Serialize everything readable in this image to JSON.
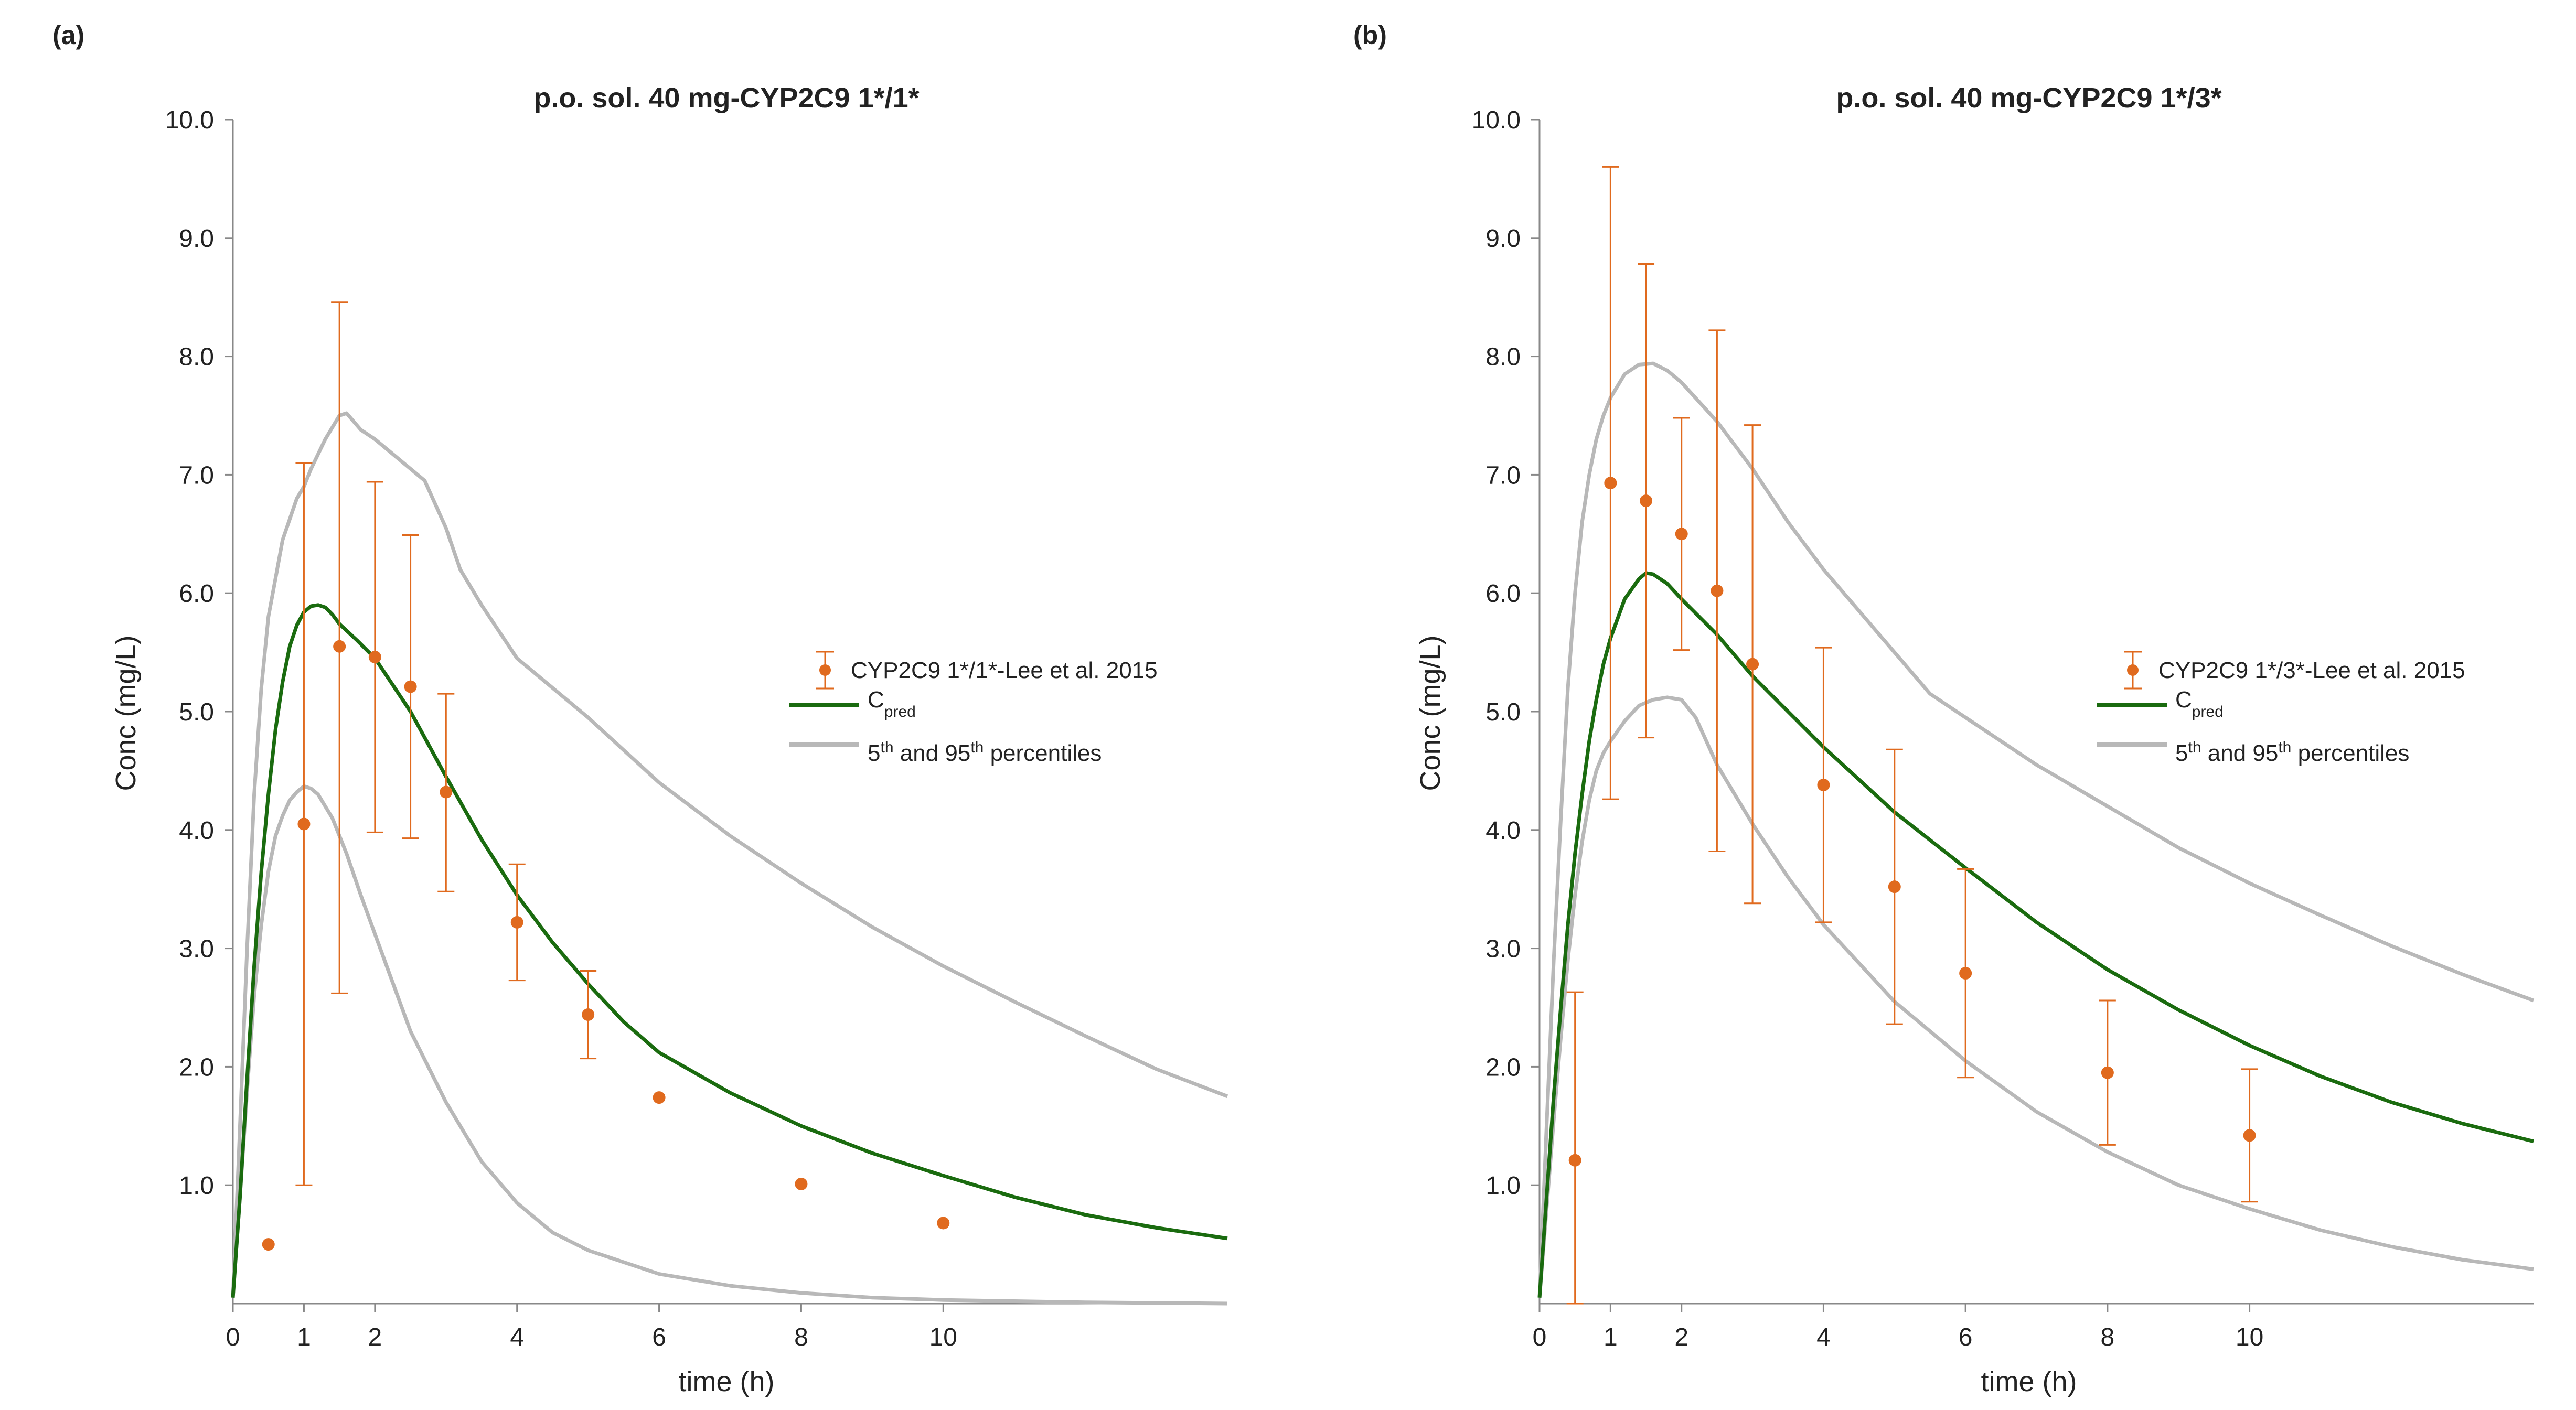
{
  "chart_data": [
    {
      "type": "line",
      "panel_label": "(a)",
      "title": "p.o. sol. 40 mg-CYP2C9 1*/1*",
      "xlabel": "time (h)",
      "ylabel": "Conc (mg/L)",
      "xlim": [
        0,
        14
      ],
      "ylim": [
        0,
        10
      ],
      "xticks": [
        0,
        1,
        2,
        4,
        6,
        8,
        10
      ],
      "xtick_labels": [
        "0",
        "1",
        "2",
        "4",
        "6",
        "8",
        "10"
      ],
      "yticks": [
        1,
        2,
        3,
        4,
        5,
        6,
        7,
        8,
        9,
        10
      ],
      "ytick_labels": [
        "1.0",
        "2.0",
        "3.0",
        "4.0",
        "5.0",
        "6.0",
        "7.0",
        "8.0",
        "9.0",
        "10.0"
      ],
      "grid": false,
      "legend_position": "right",
      "legend": {
        "observed": "CYP2C9 1*/1*-Lee et al. 2015",
        "pred_main": "C",
        "pred_sub": "pred",
        "pct_a": "5",
        "pct_sup1": "th",
        "pct_b": " and 95",
        "pct_sup2": "th",
        "pct_c": " percentiles"
      },
      "colors": {
        "observed": "#e06a1e",
        "pred": "#1a6b0f",
        "percentile": "#b8b8b8"
      },
      "observed": [
        {
          "x": 0.5,
          "y": 0.5
        },
        {
          "x": 1.0,
          "y": 4.05,
          "lo": 1.0,
          "hi": 7.1
        },
        {
          "x": 1.5,
          "y": 5.55,
          "lo": 2.62,
          "hi": 8.46
        },
        {
          "x": 2.0,
          "y": 5.46,
          "lo": 3.98,
          "hi": 6.94
        },
        {
          "x": 2.5,
          "y": 5.21,
          "lo": 3.93,
          "hi": 6.49
        },
        {
          "x": 3.0,
          "y": 4.32,
          "lo": 3.48,
          "hi": 5.15
        },
        {
          "x": 4.0,
          "y": 3.22,
          "lo": 2.73,
          "hi": 3.71
        },
        {
          "x": 5.0,
          "y": 2.44,
          "lo": 2.07,
          "hi": 2.81
        },
        {
          "x": 6.0,
          "y": 1.74
        },
        {
          "x": 8.0,
          "y": 1.01
        },
        {
          "x": 10.0,
          "y": 0.68
        }
      ],
      "series": [
        {
          "name": "C_pred",
          "role": "pred",
          "x": [
            0,
            0.1,
            0.2,
            0.3,
            0.4,
            0.5,
            0.6,
            0.7,
            0.8,
            0.9,
            1.0,
            1.1,
            1.2,
            1.3,
            1.4,
            1.5,
            1.75,
            2.0,
            2.5,
            3.0,
            3.5,
            4.0,
            4.5,
            5.0,
            5.5,
            6.0,
            7.0,
            8.0,
            9.0,
            10.0,
            11.0,
            12.0,
            13.0,
            14.0
          ],
          "y": [
            0.05,
            0.9,
            1.9,
            2.85,
            3.65,
            4.3,
            4.85,
            5.25,
            5.55,
            5.73,
            5.84,
            5.89,
            5.9,
            5.88,
            5.82,
            5.74,
            5.6,
            5.45,
            5.0,
            4.45,
            3.92,
            3.45,
            3.05,
            2.7,
            2.38,
            2.12,
            1.78,
            1.5,
            1.27,
            1.08,
            0.9,
            0.75,
            0.64,
            0.55
          ]
        },
        {
          "name": "95th percentile",
          "role": "percentile",
          "x": [
            0,
            0.1,
            0.2,
            0.3,
            0.4,
            0.5,
            0.7,
            0.9,
            1.0,
            1.1,
            1.3,
            1.5,
            1.6,
            1.8,
            2.0,
            2.3,
            2.5,
            2.7,
            3.0,
            3.2,
            3.5,
            4.0,
            5.0,
            6.0,
            7.0,
            8.0,
            9.0,
            10.0,
            11.0,
            12.0,
            13.0,
            14.0
          ],
          "y": [
            0.05,
            1.5,
            3.0,
            4.3,
            5.2,
            5.8,
            6.45,
            6.8,
            6.9,
            7.05,
            7.3,
            7.5,
            7.52,
            7.38,
            7.3,
            7.15,
            7.05,
            6.95,
            6.55,
            6.2,
            5.9,
            5.45,
            4.95,
            4.4,
            3.95,
            3.55,
            3.18,
            2.85,
            2.55,
            2.26,
            1.98,
            1.75
          ]
        },
        {
          "name": "5th percentile",
          "role": "percentile",
          "x": [
            0,
            0.1,
            0.2,
            0.3,
            0.4,
            0.5,
            0.6,
            0.7,
            0.8,
            0.9,
            1.0,
            1.1,
            1.2,
            1.4,
            1.6,
            1.8,
            2.0,
            2.5,
            3.0,
            3.5,
            4.0,
            4.5,
            5.0,
            6.0,
            7.0,
            8.0,
            9.0,
            10.0,
            11.0,
            12.0,
            14.0
          ],
          "y": [
            0.05,
            0.9,
            1.8,
            2.6,
            3.2,
            3.65,
            3.95,
            4.12,
            4.25,
            4.32,
            4.37,
            4.35,
            4.3,
            4.1,
            3.8,
            3.45,
            3.12,
            2.3,
            1.7,
            1.2,
            0.85,
            0.6,
            0.45,
            0.25,
            0.15,
            0.09,
            0.05,
            0.03,
            0.02,
            0.01,
            0.0
          ]
        }
      ]
    },
    {
      "type": "line",
      "panel_label": "(b)",
      "title": "p.o. sol. 40 mg-CYP2C9 1*/3*",
      "xlabel": "time (h)",
      "ylabel": "Conc (mg/L)",
      "xlim": [
        0,
        14
      ],
      "ylim": [
        0,
        10
      ],
      "xticks": [
        0,
        1,
        2,
        4,
        6,
        8,
        10
      ],
      "xtick_labels": [
        "0",
        "1",
        "2",
        "4",
        "6",
        "8",
        "10"
      ],
      "yticks": [
        1,
        2,
        3,
        4,
        5,
        6,
        7,
        8,
        9,
        10
      ],
      "ytick_labels": [
        "1.0",
        "2.0",
        "3.0",
        "4.0",
        "5.0",
        "6.0",
        "7.0",
        "8.0",
        "9.0",
        "10.0"
      ],
      "grid": false,
      "legend_position": "right",
      "legend": {
        "observed": "CYP2C9 1*/3*-Lee et al. 2015",
        "pred_main": "C",
        "pred_sub": "pred",
        "pct_a": "5",
        "pct_sup1": "th",
        "pct_b": " and 95",
        "pct_sup2": "th",
        "pct_c": " percentiles"
      },
      "colors": {
        "observed": "#e06a1e",
        "pred": "#1a6b0f",
        "percentile": "#b8b8b8"
      },
      "observed": [
        {
          "x": 0.5,
          "y": 1.21,
          "lo": 0.0,
          "hi": 2.63
        },
        {
          "x": 1.0,
          "y": 6.93,
          "lo": 4.26,
          "hi": 9.6
        },
        {
          "x": 1.5,
          "y": 6.78,
          "lo": 4.78,
          "hi": 8.78
        },
        {
          "x": 2.0,
          "y": 6.5,
          "lo": 5.52,
          "hi": 7.48
        },
        {
          "x": 2.5,
          "y": 6.02,
          "lo": 3.82,
          "hi": 8.22
        },
        {
          "x": 3.0,
          "y": 5.4,
          "lo": 3.38,
          "hi": 7.42
        },
        {
          "x": 4.0,
          "y": 4.38,
          "lo": 3.22,
          "hi": 5.54
        },
        {
          "x": 5.0,
          "y": 3.52,
          "lo": 2.36,
          "hi": 4.68
        },
        {
          "x": 6.0,
          "y": 2.79,
          "lo": 1.91,
          "hi": 3.67
        },
        {
          "x": 8.0,
          "y": 1.95,
          "lo": 1.34,
          "hi": 2.56
        },
        {
          "x": 10.0,
          "y": 1.42,
          "lo": 0.86,
          "hi": 1.98
        }
      ],
      "series": [
        {
          "name": "C_pred",
          "role": "pred",
          "x": [
            0,
            0.1,
            0.2,
            0.3,
            0.4,
            0.5,
            0.6,
            0.7,
            0.8,
            0.9,
            1.0,
            1.2,
            1.4,
            1.5,
            1.6,
            1.8,
            2.0,
            2.5,
            3.0,
            3.5,
            4.0,
            5.0,
            6.0,
            7.0,
            8.0,
            9.0,
            10.0,
            11.0,
            12.0,
            13.0,
            14.0
          ],
          "y": [
            0.05,
            0.9,
            1.75,
            2.5,
            3.2,
            3.8,
            4.3,
            4.75,
            5.1,
            5.4,
            5.62,
            5.95,
            6.12,
            6.17,
            6.16,
            6.08,
            5.95,
            5.65,
            5.3,
            5.0,
            4.7,
            4.15,
            3.68,
            3.22,
            2.82,
            2.48,
            2.18,
            1.92,
            1.7,
            1.52,
            1.37
          ]
        },
        {
          "name": "95th percentile",
          "role": "percentile",
          "x": [
            0,
            0.1,
            0.2,
            0.3,
            0.4,
            0.5,
            0.6,
            0.7,
            0.8,
            0.9,
            1.0,
            1.2,
            1.4,
            1.6,
            1.8,
            2.0,
            2.5,
            3.0,
            3.5,
            4.0,
            5.0,
            5.5,
            6.0,
            7.0,
            8.0,
            9.0,
            10.0,
            11.0,
            12.0,
            13.0,
            14.0
          ],
          "y": [
            0.05,
            1.5,
            2.9,
            4.1,
            5.2,
            6.0,
            6.6,
            7.0,
            7.3,
            7.5,
            7.65,
            7.85,
            7.93,
            7.94,
            7.88,
            7.78,
            7.45,
            7.05,
            6.6,
            6.2,
            5.5,
            5.15,
            4.95,
            4.55,
            4.2,
            3.85,
            3.55,
            3.28,
            3.02,
            2.78,
            2.56
          ]
        },
        {
          "name": "5th percentile",
          "role": "percentile",
          "x": [
            0,
            0.1,
            0.2,
            0.3,
            0.4,
            0.5,
            0.6,
            0.7,
            0.8,
            0.9,
            1.0,
            1.2,
            1.4,
            1.6,
            1.8,
            2.0,
            2.2,
            2.5,
            3.0,
            3.5,
            4.0,
            5.0,
            6.0,
            7.0,
            8.0,
            9.0,
            10.0,
            11.0,
            12.0,
            13.0,
            14.0
          ],
          "y": [
            0.05,
            0.8,
            1.55,
            2.25,
            2.9,
            3.45,
            3.9,
            4.25,
            4.5,
            4.65,
            4.75,
            4.92,
            5.05,
            5.1,
            5.12,
            5.1,
            4.95,
            4.55,
            4.05,
            3.6,
            3.2,
            2.55,
            2.05,
            1.62,
            1.28,
            1.0,
            0.8,
            0.62,
            0.48,
            0.37,
            0.29
          ]
        }
      ]
    }
  ]
}
